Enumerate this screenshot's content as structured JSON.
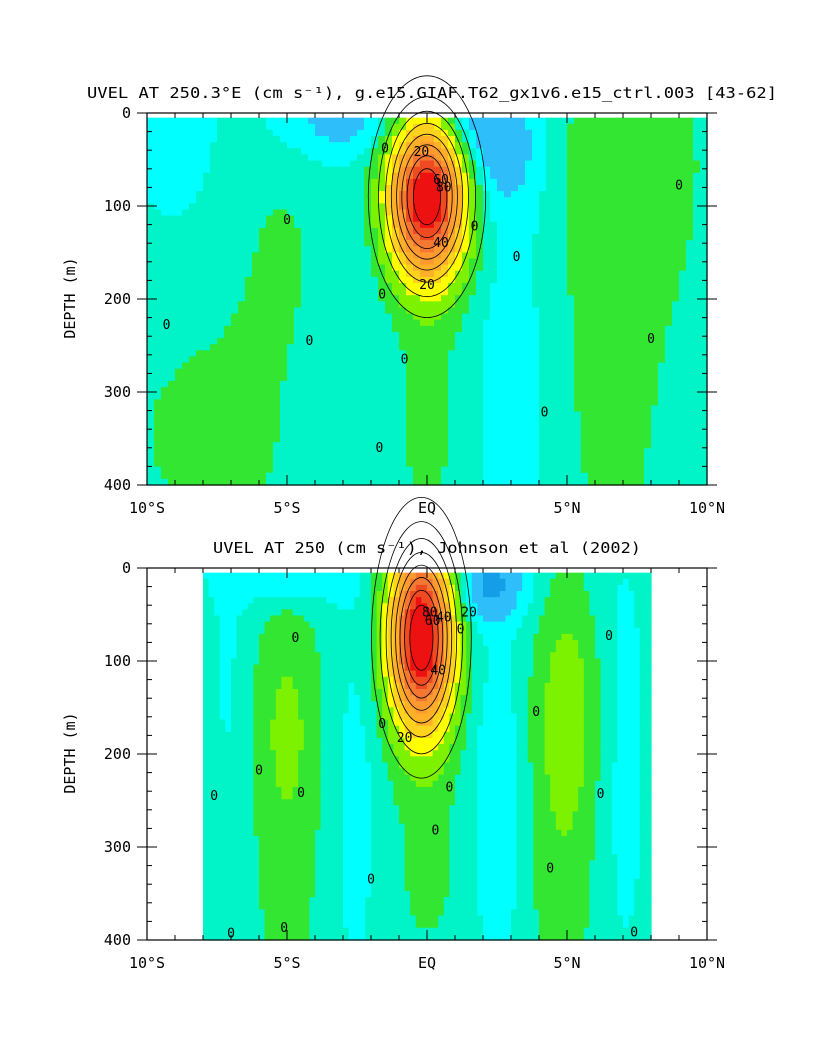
{
  "chart_data": [
    {
      "type": "contour",
      "title": "UVEL AT 250.3°E (cm s⁻¹), g.e15.GIAF.T62_gx1v6.e15_ctrl.003 [43-62]",
      "ylabel": "DEPTH (m)",
      "xlabel": "",
      "xlim": [
        -10,
        10
      ],
      "ylim": [
        400,
        0
      ],
      "x_ticks": [
        -10,
        -5,
        0,
        5,
        10
      ],
      "x_tick_labels": [
        "10°S",
        "5°S",
        "EQ",
        "5°N",
        "10°N"
      ],
      "y_ticks": [
        0,
        100,
        200,
        300,
        400
      ],
      "y_tick_labels": [
        "0",
        "100",
        "200",
        "300",
        "400"
      ],
      "contour_interval": 10,
      "core": {
        "lat": 0,
        "depth": 90,
        "max": 90,
        "sx": 1.0,
        "sy": 62
      },
      "contour_labels": [
        {
          "text": "20",
          "lat": -0.2,
          "depth": 42
        },
        {
          "text": "60",
          "lat": 0.5,
          "depth": 72
        },
        {
          "text": "80",
          "lat": 0.6,
          "depth": 80
        },
        {
          "text": "40",
          "lat": 0.5,
          "depth": 140
        },
        {
          "text": "20",
          "lat": 0.0,
          "depth": 185
        },
        {
          "text": "0",
          "lat": -1.5,
          "depth": 38
        },
        {
          "text": "0",
          "lat": 1.7,
          "depth": 122
        },
        {
          "text": "0",
          "lat": -5.0,
          "depth": 115
        },
        {
          "text": "0",
          "lat": -9.3,
          "depth": 228
        },
        {
          "text": "0",
          "lat": -4.2,
          "depth": 245
        },
        {
          "text": "0",
          "lat": -1.6,
          "depth": 195
        },
        {
          "text": "0",
          "lat": -0.8,
          "depth": 265
        },
        {
          "text": "0",
          "lat": -1.7,
          "depth": 360
        },
        {
          "text": "0",
          "lat": 3.2,
          "depth": 155
        },
        {
          "text": "0",
          "lat": 4.2,
          "depth": 322
        },
        {
          "text": "0",
          "lat": 9.0,
          "depth": 78
        },
        {
          "text": "0",
          "lat": 8.0,
          "depth": 243
        }
      ]
    },
    {
      "type": "contour",
      "title": "UVEL AT 250 (cm s⁻¹), Johnson et al (2002)",
      "ylabel": "DEPTH (m)",
      "xlabel": "",
      "xlim": [
        -10,
        10
      ],
      "ylim": [
        400,
        0
      ],
      "x_ticks": [
        -10,
        -5,
        0,
        5,
        10
      ],
      "x_tick_labels": [
        "10°S",
        "5°S",
        "EQ",
        "5°N",
        "10°N"
      ],
      "y_ticks": [
        0,
        100,
        200,
        300,
        400
      ],
      "y_tick_labels": [
        "0",
        "100",
        "200",
        "300",
        "400"
      ],
      "contour_interval": 10,
      "data_extent_lat": [
        -8,
        8
      ],
      "core": {
        "lat": -0.2,
        "depth": 75,
        "max": 90,
        "sx": 0.85,
        "sy": 72
      },
      "contour_labels": [
        {
          "text": "80",
          "lat": 0.1,
          "depth": 48
        },
        {
          "text": "60",
          "lat": 0.2,
          "depth": 57
        },
        {
          "text": "40",
          "lat": 0.6,
          "depth": 53
        },
        {
          "text": "20",
          "lat": 1.5,
          "depth": 48
        },
        {
          "text": "0",
          "lat": 1.2,
          "depth": 66
        },
        {
          "text": "40",
          "lat": 0.4,
          "depth": 110
        },
        {
          "text": "20",
          "lat": -0.8,
          "depth": 183
        },
        {
          "text": "0",
          "lat": -1.6,
          "depth": 168
        },
        {
          "text": "0",
          "lat": -4.7,
          "depth": 75
        },
        {
          "text": "0",
          "lat": -6.0,
          "depth": 218
        },
        {
          "text": "0",
          "lat": -7.6,
          "depth": 245
        },
        {
          "text": "0",
          "lat": -4.5,
          "depth": 242
        },
        {
          "text": "0",
          "lat": 0.8,
          "depth": 236
        },
        {
          "text": "0",
          "lat": 0.3,
          "depth": 282
        },
        {
          "text": "0",
          "lat": -2.0,
          "depth": 335
        },
        {
          "text": "0",
          "lat": 3.9,
          "depth": 155
        },
        {
          "text": "0",
          "lat": 6.2,
          "depth": 243
        },
        {
          "text": "0",
          "lat": 6.5,
          "depth": 73
        },
        {
          "text": "0",
          "lat": 4.4,
          "depth": 323
        },
        {
          "text": "0",
          "lat": -5.1,
          "depth": 387
        },
        {
          "text": "0",
          "lat": -7.0,
          "depth": 393
        },
        {
          "text": "0",
          "lat": 7.4,
          "depth": 392
        }
      ]
    }
  ],
  "colors": {
    "cyan": "#00ffff",
    "teal": "#00f4c8",
    "green": "#32e632",
    "lime": "#7cf200",
    "yellow": "#ffff00",
    "orange": "#ff9a30",
    "red": "#ee1111",
    "blue1": "#2ebefa",
    "blue2": "#159ee8"
  }
}
